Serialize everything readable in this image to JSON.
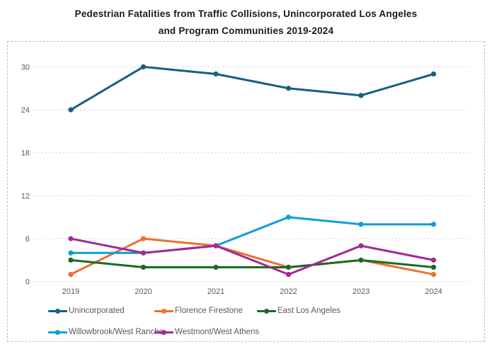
{
  "title": {
    "line1": "Pedestrian Fatalities from Traffic Collisions, Unincorporated Los Angeles",
    "line2": "and Program Communities 2019-2024"
  },
  "chart_data": {
    "type": "line",
    "categories": [
      "2019",
      "2020",
      "2021",
      "2022",
      "2023",
      "2024"
    ],
    "series": [
      {
        "name": "Unincorporated",
        "color": "#156082",
        "values": [
          24,
          30,
          29,
          27,
          26,
          29
        ]
      },
      {
        "name": "Florence Firestone",
        "color": "#E97132",
        "values": [
          1,
          6,
          5,
          2,
          3,
          1
        ]
      },
      {
        "name": "East Los Angeles",
        "color": "#196B24",
        "values": [
          3,
          2,
          2,
          2,
          3,
          2
        ]
      },
      {
        "name": "Willowbrook/West Rancho",
        "color": "#0F9ED5",
        "values": [
          4,
          4,
          5,
          9,
          8,
          8
        ]
      },
      {
        "name": "Westmont/West Athens",
        "color": "#A02B93",
        "values": [
          6,
          4,
          5,
          1,
          5,
          3
        ]
      }
    ],
    "title": "Pedestrian Fatalities from Traffic Collisions, Unincorporated Los Angeles and Program Communities 2019-2024",
    "xlabel": "",
    "ylabel": "",
    "yticks": [
      0,
      6,
      12,
      18,
      24,
      30
    ],
    "ylim": [
      0,
      33
    ],
    "grid": "horizontal-dotted",
    "legend_position": "bottom",
    "tick_color": "#595959",
    "gridline_color": "#c9c9c9",
    "border_style": "dashed"
  }
}
